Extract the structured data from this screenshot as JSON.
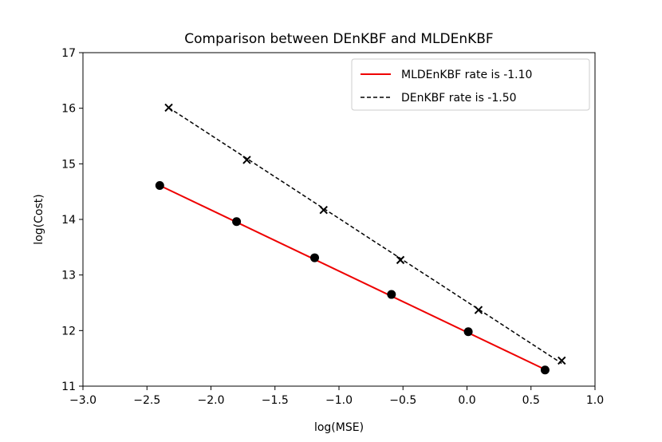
{
  "chart_data": {
    "type": "line",
    "title": "Comparison between DEnKBF and MLDEnKBF",
    "xlabel": "log(MSE)",
    "ylabel": "log(Cost)",
    "xlim": [
      -3.0,
      1.0
    ],
    "ylim": [
      11,
      17
    ],
    "xticks": [
      "−3.0",
      "−2.5",
      "−2.0",
      "−1.5",
      "−1.0",
      "−0.5",
      "0.0",
      "0.5",
      "1.0"
    ],
    "yticks": [
      "11",
      "12",
      "13",
      "14",
      "15",
      "16",
      "17"
    ],
    "grid": false,
    "legend_position": "top-right",
    "series": [
      {
        "name": "MLDEnKBF rate is -1.10",
        "line_color": "#ee0000",
        "line_style": "solid",
        "marker": "circle",
        "marker_color": "#000000",
        "x": [
          -2.4,
          -1.8,
          -1.19,
          -0.59,
          0.01,
          0.61
        ],
        "y": [
          14.61,
          13.96,
          13.31,
          12.65,
          11.98,
          11.29
        ],
        "fit": {
          "x": [
            -2.4,
            0.61
          ],
          "y": [
            14.61,
            11.3
          ]
        }
      },
      {
        "name": "DEnKBF rate is -1.50",
        "line_color": "#000000",
        "line_style": "dashed",
        "marker": "x",
        "marker_color": "#000000",
        "x": [
          -2.33,
          -1.72,
          -1.12,
          -0.52,
          0.09,
          0.74
        ],
        "y": [
          16.01,
          15.07,
          14.17,
          13.27,
          12.37,
          11.46
        ],
        "fit": {
          "x": [
            -2.33,
            0.74
          ],
          "y": [
            16.01,
            11.41
          ]
        }
      }
    ]
  }
}
